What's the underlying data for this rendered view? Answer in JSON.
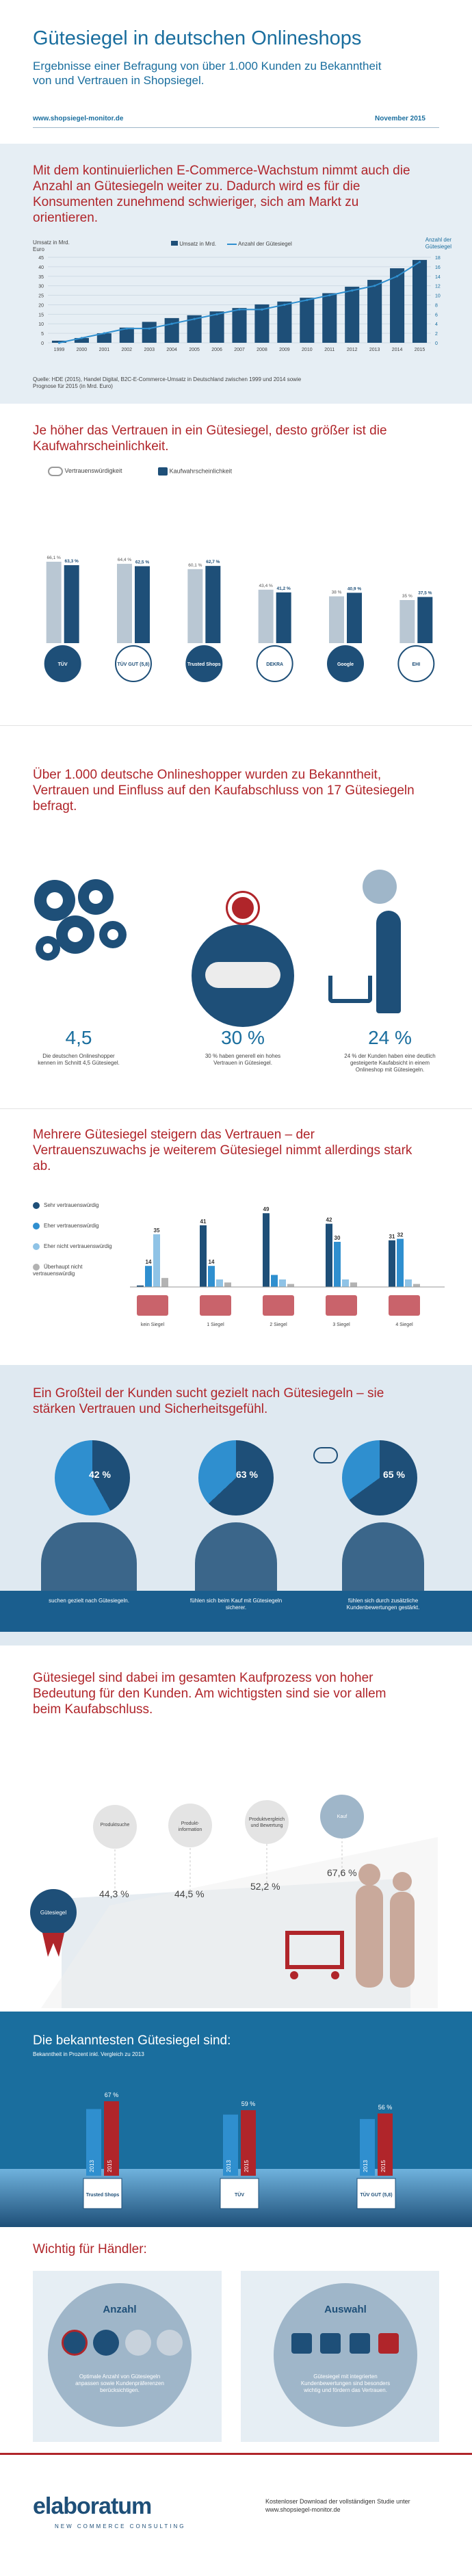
{
  "header": {
    "title": "Gütesiegel in deutschen Onlineshops",
    "subtitle": "Ergebnisse einer Befragung von über 1.000 Kunden zu Bekanntheit von und Vertrauen in Shopsiegel.",
    "url": "www.shopsiegel-monitor.de",
    "date": "November 2015"
  },
  "s1": {
    "heading": "Mit dem kontinuierlichen E-Commerce-Wachstum nimmt auch die Anzahl an Gütesiegeln weiter zu. Dadurch wird es für die Konsumenten zunehmend schwieriger, sich am Markt zu orientieren.",
    "y_left_label": "Umsatz in Mrd. Euro",
    "y_right_label": "Anzahl der Gütesiegel",
    "legend_bar": "Umsatz in Mrd.",
    "legend_line": "Anzahl der Gütesiegel",
    "source": "Quelle: HDE (2015), Handel Digital, B2C-E-Commerce-Umsatz in Deutschland zwischen 1999 und 2014 sowie Prognose für 2015 (in Mrd. Euro)"
  },
  "s2": {
    "heading": "Je höher das Vertrauen in ein Gütesiegel, desto größer ist die Kaufwahrscheinlichkeit.",
    "legend_trust": "Vertrauenswürdigkeit",
    "legend_buy": "Kaufwahrscheinlichkeit",
    "seal_names": [
      "TÜV",
      "TÜV GUT (5,8)",
      "Trusted Shops",
      "DEKRA",
      "Google",
      "EHI"
    ]
  },
  "s3": {
    "heading": "Über 1.000 deutsche Onlineshopper wurden zu Bekanntheit, Vertrauen und Einfluss auf den Kaufabschluss von 17 Gütesiegeln befragt.",
    "stat1_value": "4,5",
    "stat1_text": "Die deutschen Onlineshopper kennen im Schnitt 4,5 Gütesiegel.",
    "stat2_value": "30 %",
    "stat2_text": "30 % haben generell ein hohes Vertrauen in Gütesiegel.",
    "stat3_value": "24 %",
    "stat3_text": "24 % der Kunden haben eine deutlich gesteigerte Kaufabsicht in einem Onlineshop mit Gütesiegeln."
  },
  "s4": {
    "heading": "Mehrere Gütesiegel steigern das Vertrauen – der Vertrauenszuwachs je weiterem Gütesiegel nimmt allerdings stark ab.",
    "legend": [
      "Sehr vertrauenswürdig",
      "Eher vertrauenswürdig",
      "Eher nicht vertrauenswürdig",
      "Überhaupt nicht vertrauenswürdig"
    ],
    "legend_colors": [
      "#1e4f78",
      "#2f8fcf",
      "#8fc3e6",
      "#b3b3b3"
    ]
  },
  "s5": {
    "heading": "Ein Großteil der Kunden sucht gezielt nach Gütesiegeln – sie stärken Vertrauen und Sicherheitsgefühl.",
    "p1": "42 %",
    "p1_text": "suchen gezielt nach Gütesiegeln.",
    "p2": "63 %",
    "p2_text": "fühlen sich beim Kauf mit Gütesiegeln sicherer.",
    "p3": "65 %",
    "p3_text": "fühlen sich durch zusätzliche Kundenbewertungen gestärkt."
  },
  "s6": {
    "heading": "Gütesiegel sind dabei im gesamten Kaufprozess von hoher Bedeutung für den Kunden. Am wichtigsten sind sie vor allem beim Kaufabschluss.",
    "steps": [
      "Produktsuche",
      "Produkt-information",
      "Produktvergleich und Bewertung",
      "Kauf"
    ],
    "percents": [
      "44,3 %",
      "44,5 %",
      "52,2 %",
      "67,6 %"
    ],
    "badge": "Gütesiegel"
  },
  "s7": {
    "heading": "Die bekanntesten Gütesiegel sind:",
    "sub": "Bekanntheit in Prozent inkl. Vergleich zu 2013",
    "year_a": "2013",
    "year_b": "2015",
    "seals": [
      "Trusted Shops",
      "TÜV",
      "TÜV GUT (5,8)"
    ],
    "percents": [
      "67 %",
      "59 %",
      "56 %"
    ]
  },
  "s8": {
    "heading": "Wichtig für Händler:",
    "left_title": "Anzahl",
    "left_text": "Optimale Anzahl von Gütesiegeln anpassen sowie Kundenpräferenzen berücksichtigen.",
    "right_title": "Auswahl",
    "right_text": "Gütesiegel mit integrierten Kundenbewertungen sind besonders wichtig und fördern das Vertrauen."
  },
  "footer": {
    "logo": "elaboratum",
    "tagline": "NEW COMMERCE CONSULTING",
    "text": "Kostenloser Download der vollständigen Studie unter www.shopsiegel-monitor.de"
  },
  "colors": {
    "navy": "#1e4f78",
    "blue": "#2f8fcf",
    "red": "#b0252a",
    "band": "#e6eef4"
  },
  "chart_data": [
    {
      "type": "bar",
      "title": "",
      "categories": [
        "1999",
        "2000",
        "2001",
        "2002",
        "2003",
        "2004",
        "2005",
        "2006",
        "2007",
        "2008",
        "2009",
        "2010",
        "2011",
        "2012",
        "2013",
        "2014",
        "2015"
      ],
      "series": [
        {
          "name": "Umsatz in Mrd.",
          "values": [
            1.1,
            2.5,
            5,
            8,
            11,
            13,
            14.5,
            16.5,
            18.3,
            20.2,
            21.7,
            23.7,
            26.1,
            29.5,
            33.1,
            39.2,
            43.6
          ]
        },
        {
          "name": "Anzahl der Gütesiegel",
          "values": [
            0,
            1,
            2,
            3,
            3,
            4,
            5,
            6,
            7,
            7,
            8,
            9,
            10,
            11,
            12,
            14,
            17
          ]
        }
      ],
      "ylim": [
        0,
        45
      ],
      "y2lim": [
        0,
        18
      ],
      "xlabel": "",
      "ylabel": "Umsatz in Mrd. Euro",
      "y2label": "Anzahl der Gütesiegel"
    },
    {
      "type": "bar",
      "title": "Je höher das Vertrauen in ein Gütesiegel, desto größer ist die Kaufwahrscheinlichkeit.",
      "categories": [
        "TÜV",
        "TÜV GUT (5,8)",
        "Trusted Shops",
        "DEKRA",
        "Google",
        "EHI"
      ],
      "series": [
        {
          "name": "Vertrauenswürdigkeit",
          "values": [
            66.1,
            64.4,
            60.1,
            43.4,
            38.0,
            35.0
          ]
        },
        {
          "name": "Kaufwahrscheinlichkeit",
          "values": [
            63.3,
            62.5,
            62.7,
            41.2,
            40.9,
            37.5
          ]
        }
      ],
      "ylim": [
        0,
        100
      ]
    },
    {
      "type": "bar",
      "title": "Mehrere Gütesiegel steigern das Vertrauen",
      "categories": [
        "kein Siegel",
        "1 Siegel",
        "2 Siegel",
        "3 Siegel",
        "4 Siegel"
      ],
      "series": [
        {
          "name": "Sehr vertrauenswürdig",
          "values": [
            1,
            41,
            49,
            42,
            31
          ]
        },
        {
          "name": "Eher vertrauenswürdig",
          "values": [
            14,
            14,
            8,
            30,
            32
          ]
        },
        {
          "name": "Eher nicht vertrauenswürdig",
          "values": [
            35,
            5,
            5,
            5,
            5
          ]
        },
        {
          "name": "Überhaupt nicht vertrauenswürdig",
          "values": [
            6,
            3,
            2,
            3,
            2
          ]
        }
      ],
      "ylim": [
        0,
        50
      ]
    },
    {
      "type": "bar",
      "title": "Die bekanntesten Gütesiegel sind:",
      "categories": [
        "Trusted Shops",
        "TÜV",
        "TÜV GUT (5,8)"
      ],
      "series": [
        {
          "name": "2013",
          "values": [
            60,
            55,
            51
          ]
        },
        {
          "name": "2015",
          "values": [
            67,
            59,
            56
          ]
        }
      ],
      "ylim": [
        0,
        80
      ]
    }
  ]
}
